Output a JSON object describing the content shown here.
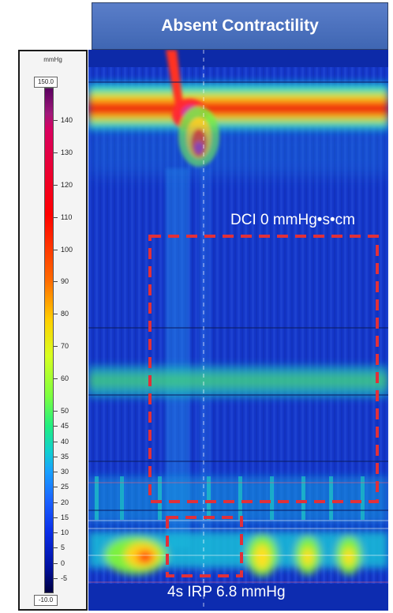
{
  "title": "Absent Contractility",
  "dci_label": "DCI 0 mmHg•s•cm",
  "irp_label": "4s IRP 6.8 mmHg",
  "scale": {
    "unit": "mmHg",
    "max": "150.0",
    "min": "-10.0",
    "ticks": [
      "140",
      "130",
      "120",
      "110",
      "100",
      "90",
      "80",
      "70",
      "60",
      "50",
      "45",
      "40",
      "35",
      "30",
      "25",
      "20",
      "15",
      "10",
      "5",
      "0",
      "-5"
    ],
    "tick_values": [
      140,
      130,
      120,
      110,
      100,
      90,
      80,
      70,
      60,
      50,
      45,
      40,
      35,
      30,
      25,
      20,
      15,
      10,
      5,
      0,
      -5
    ]
  },
  "colors": {
    "background_blue": "#1436c8",
    "dashed_box": "#e0303a",
    "title_bg": "#4a70bf"
  }
}
